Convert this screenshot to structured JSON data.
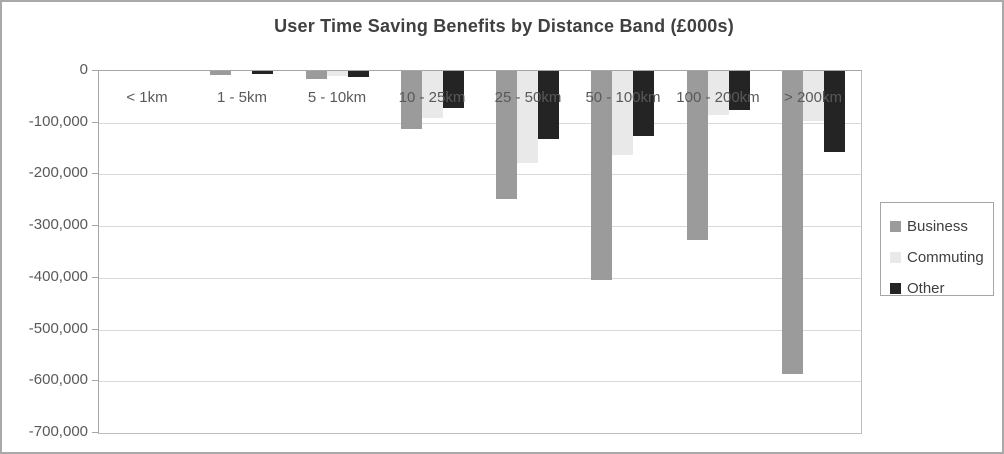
{
  "chart_data": {
    "type": "bar",
    "title": "User Time Saving Benefits by Distance Band (£000s)",
    "categories": [
      "< 1km",
      "1 - 5km",
      "5 - 10km",
      "10 - 25km",
      "25 - 50km",
      "50 - 100km",
      "100 - 200km",
      "> 200km"
    ],
    "series": [
      {
        "name": "Business",
        "color": "#9b9b9b",
        "values": [
          0,
          -8000,
          -15000,
          -112000,
          -248000,
          -405000,
          -326000,
          -586000
        ]
      },
      {
        "name": "Commuting",
        "color": "#e9e9e9",
        "values": [
          0,
          0,
          -10000,
          -90000,
          -177000,
          -163000,
          -86000,
          -96000
        ]
      },
      {
        "name": "Other",
        "color": "#242424",
        "values": [
          0,
          -5000,
          -12000,
          -72000,
          -132000,
          -125000,
          -75000,
          -157000
        ]
      }
    ],
    "xlabel": "",
    "ylabel": "",
    "ylim": [
      -700000,
      0
    ],
    "ytick_step": 100000,
    "ytick_labels": [
      "0",
      "-100,000",
      "-200,000",
      "-300,000",
      "-400,000",
      "-500,000",
      "-600,000",
      "-700,000"
    ],
    "grid": true,
    "legend_position": "right",
    "legend_entries": [
      "Business",
      "Commuting",
      "Other"
    ]
  },
  "colors": {
    "title_text": "#404040",
    "axis_text": "#595959",
    "gridline": "#d9d9d9",
    "axis_line": "#a6a6a6",
    "plot_border": "#bfbfbf",
    "legend_border": "#a6a6a6",
    "background": "#ffffff"
  }
}
